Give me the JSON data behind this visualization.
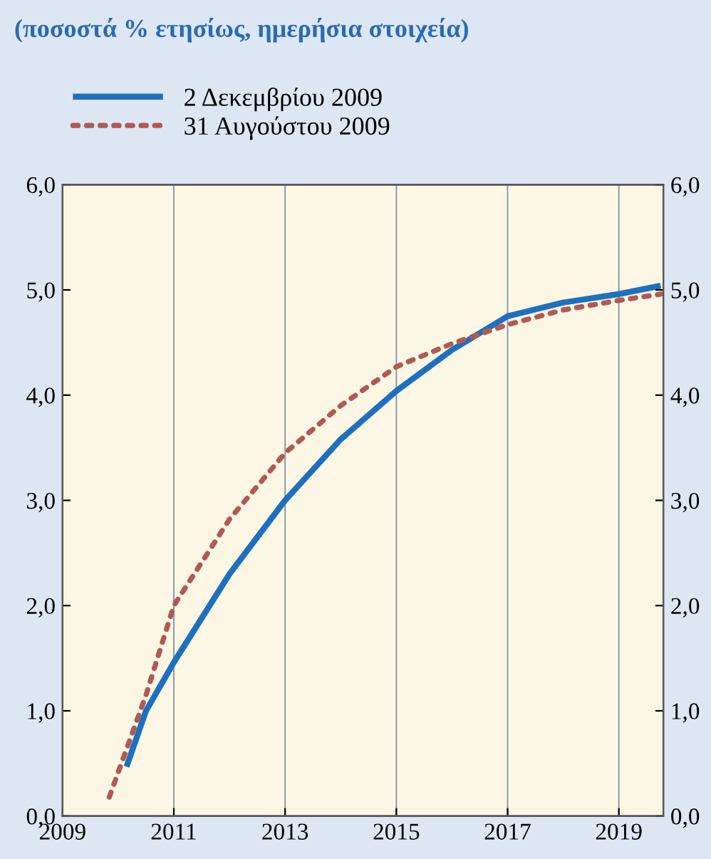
{
  "chart_data": {
    "type": "line",
    "title": "(ποσοστά % ετησίως, ημερήσια στοιχεία)",
    "series": [
      {
        "name": "2 Δεκεμβρίου 2009",
        "color": "#1f6fbf",
        "line_style": "solid",
        "x": [
          2010.15,
          2010.5,
          2011,
          2012,
          2013,
          2014,
          2015,
          2016,
          2017,
          2018,
          2019,
          2019.75
        ],
        "values": [
          0.47,
          1.0,
          1.46,
          2.3,
          3.0,
          3.58,
          4.04,
          4.43,
          4.75,
          4.88,
          4.96,
          5.04
        ]
      },
      {
        "name": "31 Αυγούστου 2009",
        "color": "#b05a55",
        "line_style": "dotted",
        "x": [
          2009.84,
          2010.5,
          2011,
          2012,
          2013,
          2014,
          2015,
          2016,
          2017,
          2018,
          2019,
          2019.75
        ],
        "values": [
          0.18,
          1.15,
          2.0,
          2.82,
          3.45,
          3.9,
          4.27,
          4.49,
          4.67,
          4.81,
          4.9,
          4.96
        ]
      }
    ],
    "xlim": [
      2009,
      2019.8
    ],
    "xticks": [
      2009,
      2011,
      2013,
      2015,
      2017,
      2019
    ],
    "ylim": [
      0,
      6
    ],
    "yticks": [
      {
        "value": 0,
        "label": "0,0"
      },
      {
        "value": 1,
        "label": "1,0"
      },
      {
        "value": 2,
        "label": "2,0"
      },
      {
        "value": 3,
        "label": "3,0"
      },
      {
        "value": 4,
        "label": "4,0"
      },
      {
        "value": 5,
        "label": "5,0"
      },
      {
        "value": 6,
        "label": "6,0"
      }
    ],
    "y2lim": [
      0,
      6
    ],
    "y2ticks": [
      {
        "value": 0,
        "label": "0,0"
      },
      {
        "value": 1,
        "label": "1,0"
      },
      {
        "value": 2,
        "label": "2,0"
      },
      {
        "value": 3,
        "label": "3,0"
      },
      {
        "value": 4,
        "label": "4,0"
      },
      {
        "value": 5,
        "label": "5,0"
      },
      {
        "value": 6,
        "label": "6,0"
      }
    ],
    "grid": "x",
    "legend": "top left"
  }
}
